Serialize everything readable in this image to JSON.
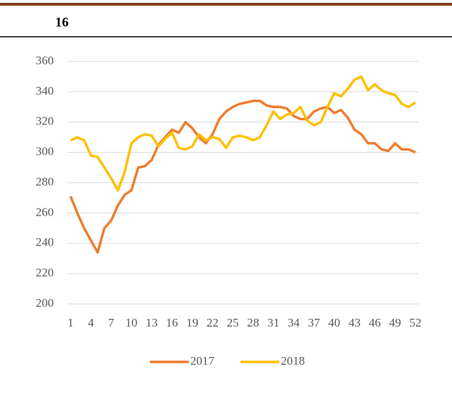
{
  "header": {
    "page_number": "16"
  },
  "chart_data": {
    "type": "line",
    "x": [
      1,
      2,
      3,
      4,
      5,
      6,
      7,
      8,
      9,
      10,
      11,
      12,
      13,
      14,
      15,
      16,
      17,
      18,
      19,
      20,
      21,
      22,
      23,
      24,
      25,
      26,
      27,
      28,
      29,
      30,
      31,
      32,
      33,
      34,
      35,
      36,
      37,
      38,
      39,
      40,
      41,
      42,
      43,
      44,
      45,
      46,
      47,
      48,
      49,
      50,
      51,
      52
    ],
    "xlim": [
      0.5,
      52.5
    ],
    "xticks": [
      1,
      4,
      7,
      10,
      13,
      16,
      19,
      22,
      25,
      28,
      31,
      34,
      37,
      40,
      43,
      46,
      49,
      52
    ],
    "ylim": [
      200,
      360
    ],
    "yticks": [
      200,
      220,
      240,
      260,
      280,
      300,
      320,
      340,
      360
    ],
    "grid": true,
    "legend": "bottom",
    "series": [
      {
        "name": "2017",
        "color": "#ed7d31",
        "values": [
          271,
          260,
          250,
          242,
          234,
          250,
          255,
          265,
          272,
          275,
          290,
          291,
          295,
          305,
          310,
          315,
          313,
          320,
          316,
          310,
          306,
          312,
          322,
          327,
          330,
          332,
          333,
          334,
          334,
          331,
          330,
          330,
          329,
          324,
          322,
          322,
          327,
          329,
          330,
          326,
          328,
          323,
          315,
          312,
          306,
          306,
          302,
          301,
          306,
          302,
          302,
          300
        ]
      },
      {
        "name": "2018",
        "color": "#ffc000",
        "values": [
          308,
          310,
          308,
          298,
          297,
          290,
          283,
          275,
          287,
          306,
          310,
          312,
          311,
          304,
          309,
          313,
          303,
          302,
          304,
          312,
          308,
          310,
          309,
          303,
          310,
          311,
          310,
          308,
          310,
          318,
          327,
          322,
          325,
          326,
          330,
          321,
          318,
          320,
          330,
          339,
          337,
          342,
          348,
          350,
          341,
          345,
          341,
          339,
          338,
          332,
          330,
          333
        ]
      }
    ]
  }
}
